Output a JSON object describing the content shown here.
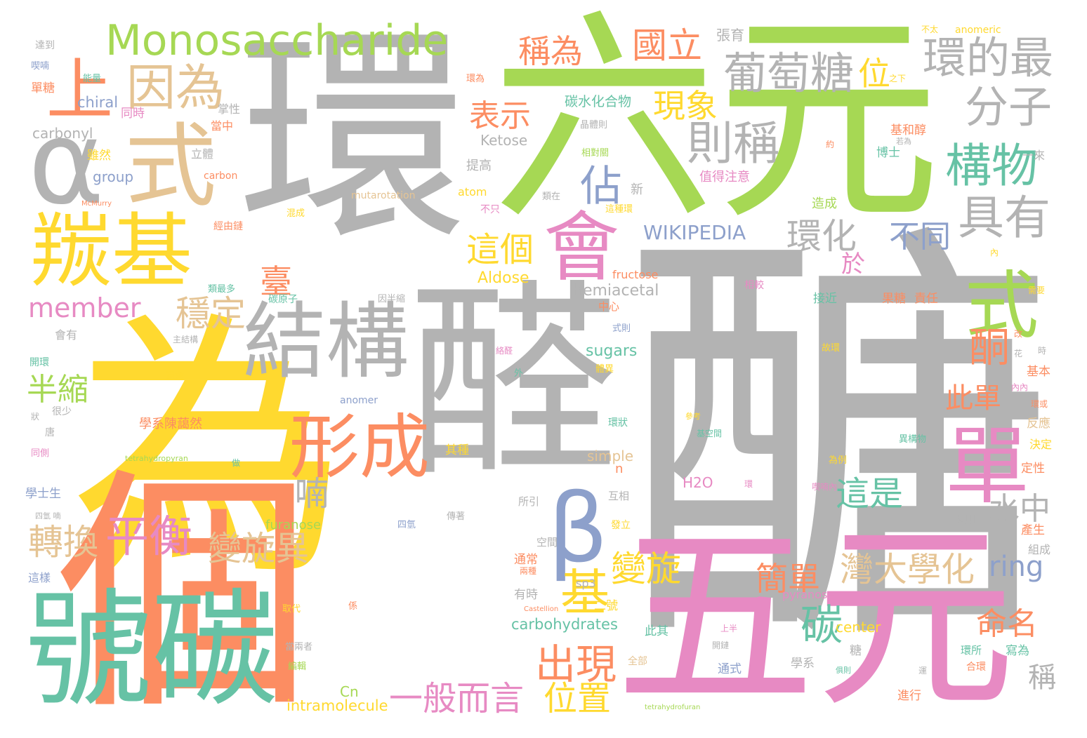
{
  "colors": {
    "gray": "#b3b3b3",
    "green": "#a6d854",
    "teal": "#66c2a5",
    "orange": "#fc8d62",
    "yellow": "#ffd92f",
    "tan": "#e5c494",
    "pink": "#e78ac3",
    "blue": "#8da0cb"
  },
  "words": [
    {
      "t": "醣",
      "c": "gray"
    },
    {
      "t": "醛",
      "c": "gray"
    },
    {
      "t": "環",
      "c": "gray"
    },
    {
      "t": "六元",
      "c": "green"
    },
    {
      "t": "為",
      "c": "yellow"
    },
    {
      "t": "個",
      "c": "orange"
    },
    {
      "t": "五元",
      "c": "pink"
    },
    {
      "t": "號碳",
      "c": "teal"
    },
    {
      "t": "Monosaccharide",
      "c": "green"
    },
    {
      "t": "α",
      "c": "gray"
    },
    {
      "t": "式",
      "c": "tan"
    },
    {
      "t": "上",
      "c": "orange"
    },
    {
      "t": "羰基",
      "c": "yellow"
    },
    {
      "t": "結構",
      "c": "gray"
    },
    {
      "t": "形成",
      "c": "orange"
    },
    {
      "t": "會",
      "c": "pink"
    },
    {
      "t": "β",
      "c": "blue"
    },
    {
      "t": "單",
      "c": "pink"
    },
    {
      "t": "式",
      "c": "green"
    },
    {
      "t": "葡萄糖",
      "c": "gray"
    },
    {
      "t": "環的最",
      "c": "gray"
    },
    {
      "t": "分子",
      "c": "gray"
    },
    {
      "t": "構物",
      "c": "teal"
    },
    {
      "t": "具有",
      "c": "gray"
    },
    {
      "t": "則稱",
      "c": "gray"
    },
    {
      "t": "因為",
      "c": "tan"
    },
    {
      "t": "稱為",
      "c": "orange"
    },
    {
      "t": "國立",
      "c": "orange"
    },
    {
      "t": "表示",
      "c": "orange"
    },
    {
      "t": "現象",
      "c": "yellow"
    },
    {
      "t": "佔",
      "c": "blue"
    },
    {
      "t": "這個",
      "c": "yellow"
    },
    {
      "t": "環化",
      "c": "gray"
    },
    {
      "t": "不同",
      "c": "blue"
    },
    {
      "t": "WIKIPEDIA",
      "c": "blue"
    },
    {
      "t": "member",
      "c": "pink"
    },
    {
      "t": "穩定",
      "c": "tan"
    },
    {
      "t": "臺",
      "c": "orange"
    },
    {
      "t": "半縮",
      "c": "green"
    },
    {
      "t": "喃",
      "c": "gray"
    },
    {
      "t": "平衡",
      "c": "pink"
    },
    {
      "t": "轉換",
      "c": "tan"
    },
    {
      "t": "變旋異",
      "c": "tan"
    },
    {
      "t": "基",
      "c": "yellow"
    },
    {
      "t": "出現",
      "c": "orange"
    },
    {
      "t": "位置",
      "c": "yellow"
    },
    {
      "t": "一般而言",
      "c": "pink"
    },
    {
      "t": "變旋",
      "c": "yellow"
    },
    {
      "t": "簡單",
      "c": "orange"
    },
    {
      "t": "灣大學化",
      "c": "tan"
    },
    {
      "t": "ring",
      "c": "blue"
    },
    {
      "t": "這是",
      "c": "teal"
    },
    {
      "t": "此單",
      "c": "orange"
    },
    {
      "t": "水中",
      "c": "gray"
    },
    {
      "t": "酮",
      "c": "orange"
    },
    {
      "t": "碳",
      "c": "teal"
    },
    {
      "t": "命名",
      "c": "orange"
    },
    {
      "t": "稱",
      "c": "gray"
    },
    {
      "t": "位",
      "c": "yellow"
    },
    {
      "t": "於",
      "c": "pink"
    },
    {
      "t": "sugars",
      "c": "teal"
    },
    {
      "t": "hemiacetal",
      "c": "gray"
    },
    {
      "t": "Aldose",
      "c": "yellow"
    },
    {
      "t": "carbohydrates",
      "c": "teal"
    },
    {
      "t": "carbonyl",
      "c": "gray"
    },
    {
      "t": "chiral",
      "c": "blue"
    },
    {
      "t": "group",
      "c": "blue"
    },
    {
      "t": "Ketose",
      "c": "gray"
    },
    {
      "t": "碳水化合物",
      "c": "teal"
    },
    {
      "t": "mutarotation",
      "c": "tan"
    },
    {
      "t": "張育",
      "c": "gray"
    },
    {
      "t": "center",
      "c": "yellow"
    },
    {
      "t": "intramolecule",
      "c": "yellow"
    },
    {
      "t": "simple",
      "c": "tan"
    },
    {
      "t": "furanose",
      "c": "green"
    },
    {
      "t": "anomer",
      "c": "blue"
    },
    {
      "t": "fructose",
      "c": "orange"
    },
    {
      "t": "carbon",
      "c": "orange"
    },
    {
      "t": "H2O",
      "c": "pink"
    },
    {
      "t": "atom",
      "c": "yellow"
    },
    {
      "t": "sp3",
      "c": "gray"
    },
    {
      "t": "pyranose",
      "c": "pink"
    },
    {
      "t": "Cn",
      "c": "green"
    },
    {
      "t": "anomeric",
      "c": "yellow"
    },
    {
      "t": "tetrahydropyran",
      "c": "green"
    },
    {
      "t": "tetrahydrofuran",
      "c": "green"
    },
    {
      "t": "McMurry",
      "c": "orange"
    },
    {
      "t": "Castellion",
      "c": "orange"
    },
    {
      "t": "學系陳藹然",
      "c": "orange"
    },
    {
      "t": "值得注意",
      "c": "pink"
    },
    {
      "t": "提高",
      "c": "gray"
    },
    {
      "t": "新",
      "c": "gray"
    },
    {
      "t": "造成",
      "c": "green"
    },
    {
      "t": "基和醇",
      "c": "orange"
    },
    {
      "t": "博士",
      "c": "teal"
    },
    {
      "t": "一來",
      "c": "gray"
    },
    {
      "t": "果糖",
      "c": "orange"
    },
    {
      "t": "責任",
      "c": "orange"
    },
    {
      "t": "接近",
      "c": "teal"
    },
    {
      "t": "基本",
      "c": "orange"
    },
    {
      "t": "反應",
      "c": "tan"
    },
    {
      "t": "決定",
      "c": "yellow"
    },
    {
      "t": "定性",
      "c": "orange"
    },
    {
      "t": "產生",
      "c": "orange"
    },
    {
      "t": "組成",
      "c": "gray"
    },
    {
      "t": "環則",
      "c": "gray"
    },
    {
      "t": "寫為",
      "c": "teal"
    },
    {
      "t": "環所",
      "c": "teal"
    },
    {
      "t": "合環",
      "c": "orange"
    },
    {
      "t": "進行",
      "c": "orange"
    },
    {
      "t": "學系",
      "c": "gray"
    },
    {
      "t": "糖",
      "c": "gray"
    },
    {
      "t": "通式",
      "c": "blue"
    },
    {
      "t": "上半",
      "c": "pink"
    },
    {
      "t": "開鏈",
      "c": "gray"
    },
    {
      "t": "全部",
      "c": "tan"
    },
    {
      "t": "此其",
      "c": "teal"
    },
    {
      "t": "二號",
      "c": "yellow"
    },
    {
      "t": "有時",
      "c": "gray"
    },
    {
      "t": "通常",
      "c": "orange"
    },
    {
      "t": "兩種",
      "c": "orange"
    },
    {
      "t": "空間",
      "c": "gray"
    },
    {
      "t": "所引",
      "c": "gray"
    },
    {
      "t": "四氫",
      "c": "blue"
    },
    {
      "t": "其種",
      "c": "yellow"
    },
    {
      "t": "互相",
      "c": "gray"
    },
    {
      "t": "發立",
      "c": "yellow"
    },
    {
      "t": "環狀",
      "c": "teal"
    },
    {
      "t": "這種環",
      "c": "yellow"
    },
    {
      "t": "相對關",
      "c": "green"
    },
    {
      "t": "晶體則",
      "c": "gray"
    },
    {
      "t": "類在",
      "c": "gray"
    },
    {
      "t": "中心",
      "c": "orange"
    },
    {
      "t": "式則",
      "c": "blue"
    },
    {
      "t": "相較",
      "c": "pink"
    },
    {
      "t": "掌性",
      "c": "gray"
    },
    {
      "t": "立體",
      "c": "gray"
    },
    {
      "t": "當中",
      "c": "orange"
    },
    {
      "t": "同時",
      "c": "pink"
    },
    {
      "t": "雖然",
      "c": "yellow"
    },
    {
      "t": "單糖",
      "c": "orange"
    },
    {
      "t": "能量",
      "c": "teal"
    },
    {
      "t": "達到",
      "c": "gray"
    },
    {
      "t": "喫喃",
      "c": "blue"
    },
    {
      "t": "混成",
      "c": "yellow"
    },
    {
      "t": "經由鏈",
      "c": "orange"
    },
    {
      "t": "類最多",
      "c": "teal"
    },
    {
      "t": "碳原子",
      "c": "teal"
    },
    {
      "t": "因半縮",
      "c": "gray"
    },
    {
      "t": "主結構",
      "c": "gray"
    },
    {
      "t": "還會",
      "c": "yellow"
    },
    {
      "t": "開環",
      "c": "teal"
    },
    {
      "t": "會有",
      "c": "gray"
    },
    {
      "t": "學士生",
      "c": "blue"
    },
    {
      "t": "同側",
      "c": "pink"
    },
    {
      "t": "很少",
      "c": "gray"
    },
    {
      "t": "唐",
      "c": "gray"
    },
    {
      "t": "這樣",
      "c": "blue"
    },
    {
      "t": "取代",
      "c": "yellow"
    },
    {
      "t": "當兩者",
      "c": "gray"
    },
    {
      "t": "編輯",
      "c": "green"
    },
    {
      "t": "做",
      "c": "teal"
    },
    {
      "t": "故環",
      "c": "yellow"
    },
    {
      "t": "為例",
      "c": "yellow"
    },
    {
      "t": "異構物",
      "c": "teal"
    },
    {
      "t": "喫喃內",
      "c": "pink"
    },
    {
      "t": "不太",
      "c": "yellow"
    },
    {
      "t": "環為",
      "c": "orange"
    },
    {
      "t": "之下",
      "c": "yellow"
    },
    {
      "t": "若為",
      "c": "gray"
    },
    {
      "t": "約",
      "c": "orange"
    },
    {
      "t": "需要",
      "c": "yellow"
    },
    {
      "t": "體異",
      "c": "yellow"
    },
    {
      "t": "外",
      "c": "teal"
    },
    {
      "t": "環或",
      "c": "orange"
    },
    {
      "t": "內內",
      "c": "pink"
    },
    {
      "t": "改",
      "c": "orange"
    },
    {
      "t": "時",
      "c": "gray"
    },
    {
      "t": "花",
      "c": "gray"
    },
    {
      "t": "參考",
      "c": "yellow"
    },
    {
      "t": "基空間",
      "c": "teal"
    },
    {
      "t": "不只",
      "c": "pink"
    },
    {
      "t": "環",
      "c": "pink"
    },
    {
      "t": "俱則",
      "c": "teal"
    },
    {
      "t": "運",
      "c": "gray"
    },
    {
      "t": "內",
      "c": "yellow"
    },
    {
      "t": "n",
      "c": "orange"
    },
    {
      "t": "傳著",
      "c": "gray"
    },
    {
      "t": "四氫 喃",
      "c": "gray"
    },
    {
      "t": "狀",
      "c": "gray"
    },
    {
      "t": "係",
      "c": "orange"
    },
    {
      "t": "絡醛",
      "c": "pink"
    }
  ]
}
